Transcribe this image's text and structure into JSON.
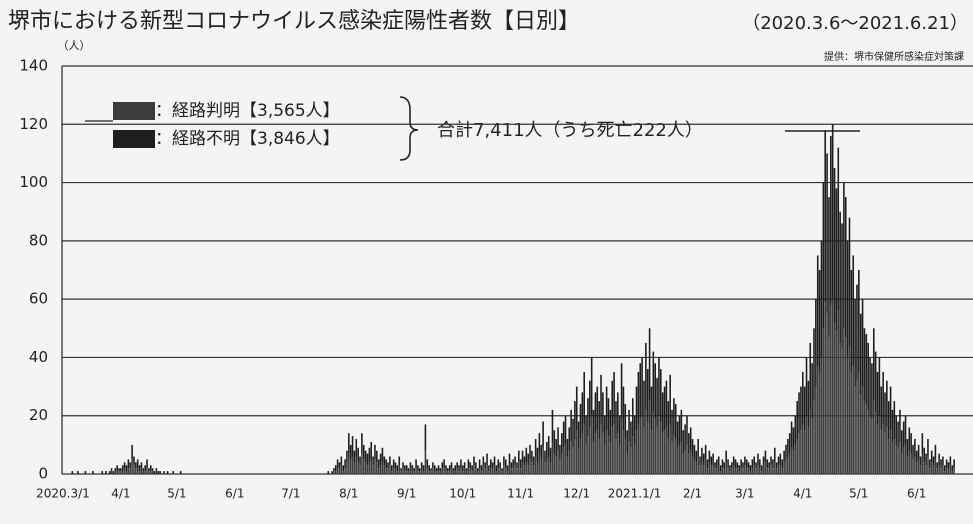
{
  "chart_data": {
    "type": "stacked_bar",
    "title": "堺市における新型コロナウイルス感染症陽性者数【日別】",
    "subtitle": "（2020.3.6～2021.6.21）",
    "source": "提供：堺市保健所感染症対策課",
    "y_label": "（人）",
    "annotation": "合計7,411人（うち死亡222人）",
    "ylim": [
      0,
      140
    ],
    "yticks": [
      0,
      20,
      40,
      60,
      80,
      100,
      120,
      140
    ],
    "grid": true,
    "categories": [
      "2020.3/1",
      null,
      null,
      null,
      null,
      null,
      null,
      null,
      null,
      null,
      null,
      null,
      null,
      null,
      null,
      null,
      null,
      null,
      null,
      null,
      null,
      null,
      null,
      null,
      null,
      null,
      null,
      null,
      null,
      null,
      null,
      "4/1",
      null,
      null,
      null,
      null,
      null,
      null,
      null,
      null,
      null,
      null,
      null,
      null,
      null,
      null,
      null,
      null,
      null,
      null,
      null,
      null,
      null,
      null,
      null,
      null,
      null,
      null,
      null,
      null,
      null,
      "5/1",
      null,
      null,
      null,
      null,
      null,
      null,
      null,
      null,
      null,
      null,
      null,
      null,
      null,
      null,
      null,
      null,
      null,
      null,
      null,
      null,
      null,
      null,
      null,
      null,
      null,
      null,
      null,
      null,
      null,
      null,
      "6/1",
      null,
      null,
      null,
      null,
      null,
      null,
      null,
      null,
      null,
      null,
      null,
      null,
      null,
      null,
      null,
      null,
      null,
      null,
      null,
      null,
      null,
      null,
      null,
      null,
      null,
      null,
      null,
      null,
      null,
      "7/1",
      null,
      null,
      null,
      null,
      null,
      null,
      null,
      null,
      null,
      null,
      null,
      null,
      null,
      null,
      null,
      null,
      null,
      null,
      null,
      null,
      null,
      null,
      null,
      null,
      null,
      null,
      null,
      null,
      null,
      null,
      "8/1",
      null,
      null,
      null,
      null,
      null,
      null,
      null,
      null,
      null,
      null,
      null,
      null,
      null,
      null,
      null,
      null,
      null,
      null,
      null,
      null,
      null,
      null,
      null,
      null,
      null,
      null,
      null,
      null,
      null,
      null,
      "9/1",
      null,
      null,
      null,
      null,
      null,
      null,
      null,
      null,
      null,
      null,
      null,
      null,
      null,
      null,
      null,
      null,
      null,
      null,
      null,
      null,
      null,
      null,
      null,
      null,
      null,
      null,
      null,
      null,
      null,
      "10/1",
      null,
      null,
      null,
      null,
      null,
      null,
      null,
      null,
      null,
      null,
      null,
      null,
      null,
      null,
      null,
      null,
      null,
      null,
      null,
      null,
      null,
      null,
      null,
      null,
      null,
      null,
      null,
      null,
      null,
      null,
      "11/1",
      null,
      null,
      null,
      null,
      null,
      null,
      null,
      null,
      null,
      null,
      null,
      null,
      null,
      null,
      null,
      null,
      null,
      null,
      null,
      null,
      null,
      null,
      null,
      null,
      null,
      null,
      null,
      null,
      null,
      "12/1",
      null,
      null,
      null,
      null,
      null,
      null,
      null,
      null,
      null,
      null,
      null,
      null,
      null,
      null,
      null,
      null,
      null,
      null,
      null,
      null,
      null,
      null,
      null,
      null,
      null,
      null,
      null,
      null,
      null,
      null,
      "2021.1/1",
      null,
      null,
      null,
      null,
      null,
      null,
      null,
      null,
      null,
      null,
      null,
      null,
      null,
      null,
      null,
      null,
      null,
      null,
      null,
      null,
      null,
      null,
      null,
      null,
      null,
      null,
      null,
      null,
      null,
      null,
      "2/1",
      null,
      null,
      null,
      null,
      null,
      null,
      null,
      null,
      null,
      null,
      null,
      null,
      null,
      null,
      null,
      null,
      null,
      null,
      null,
      null,
      null,
      null,
      null,
      null,
      null,
      null,
      null,
      "3/1",
      null,
      null,
      null,
      null,
      null,
      null,
      null,
      null,
      null,
      null,
      null,
      null,
      null,
      null,
      null,
      null,
      null,
      null,
      null,
      null,
      null,
      null,
      null,
      null,
      null,
      null,
      null,
      null,
      null,
      null,
      "4/1",
      null,
      null,
      null,
      null,
      null,
      null,
      null,
      null,
      null,
      null,
      null,
      null,
      null,
      null,
      null,
      null,
      null,
      null,
      null,
      null,
      null,
      null,
      null,
      null,
      null,
      null,
      null,
      null,
      null,
      "5/1",
      null,
      null,
      null,
      null,
      null,
      null,
      null,
      null,
      null,
      null,
      null,
      null,
      null,
      null,
      null,
      null,
      null,
      null,
      null,
      null,
      null,
      null,
      null,
      null,
      null,
      null,
      null,
      null,
      null,
      null,
      "6/1",
      null,
      null,
      null,
      null,
      null,
      null,
      null,
      null,
      null,
      null,
      null,
      null,
      null,
      null,
      null,
      null,
      null,
      null,
      null,
      null
    ],
    "series": [
      {
        "name": "：経路判明【3,565人】",
        "color": "#3c3c3c",
        "values": [
          0,
          0,
          0,
          0,
          0,
          0,
          0,
          0,
          0,
          0,
          0,
          0,
          0,
          0,
          0,
          0,
          0,
          0,
          0,
          0,
          0,
          0,
          0,
          0,
          0,
          0,
          1,
          0,
          1,
          1,
          1,
          1,
          1,
          2,
          1,
          2,
          2,
          5,
          3,
          2,
          2,
          1,
          2,
          1,
          1,
          2,
          1,
          1,
          1,
          0,
          1,
          0,
          0,
          0,
          0,
          0,
          0,
          0,
          0,
          0,
          0,
          0,
          0,
          0,
          0,
          0,
          0,
          0,
          0,
          0,
          0,
          0,
          0,
          0,
          0,
          0,
          0,
          0,
          0,
          0,
          0,
          0,
          0,
          0,
          0,
          0,
          0,
          0,
          0,
          0,
          0,
          0,
          0,
          0,
          0,
          0,
          0,
          0,
          0,
          0,
          0,
          0,
          0,
          0,
          0,
          0,
          0,
          0,
          0,
          0,
          0,
          0,
          0,
          0,
          0,
          0,
          0,
          0,
          0,
          0,
          0,
          0,
          0,
          0,
          0,
          0,
          0,
          0,
          0,
          0,
          0,
          0,
          0,
          0,
          0,
          0,
          0,
          0,
          0,
          0,
          0,
          0,
          0,
          0,
          0,
          1,
          1,
          2,
          2,
          3,
          1,
          2,
          4,
          7,
          5,
          6,
          4,
          6,
          4,
          3,
          7,
          5,
          4,
          3,
          4,
          5,
          3,
          5,
          4,
          2,
          3,
          4,
          3,
          2,
          2,
          3,
          1,
          2,
          2,
          1,
          3,
          1,
          2,
          1,
          1,
          1,
          2,
          1,
          1,
          2,
          1,
          1,
          2,
          1,
          8,
          2,
          1,
          1,
          2,
          1,
          1,
          1,
          1,
          2,
          2,
          1,
          1,
          1,
          2,
          1,
          1,
          2,
          1,
          2,
          1,
          2,
          1,
          2,
          2,
          1,
          3,
          2,
          1,
          2,
          1,
          3,
          2,
          3,
          1,
          2,
          2,
          3,
          1,
          2,
          2,
          1,
          3,
          2,
          1,
          3,
          2,
          2,
          3,
          2,
          4,
          2,
          4,
          3,
          4,
          3,
          5,
          4,
          3,
          6,
          4,
          7,
          5,
          9,
          4,
          5,
          6,
          4,
          11,
          7,
          6,
          8,
          5,
          7,
          9,
          10,
          6,
          8,
          11,
          9,
          12,
          15,
          9,
          12,
          14,
          17,
          10,
          13,
          16,
          20,
          11,
          14,
          15,
          12,
          17,
          14,
          10,
          15,
          13,
          11,
          16,
          17,
          12,
          14,
          10,
          19,
          15,
          12,
          7,
          11,
          9,
          13,
          10,
          15,
          17,
          19,
          20,
          16,
          22,
          18,
          25,
          15,
          21,
          19,
          16,
          20,
          18,
          14,
          15,
          16,
          12,
          17,
          11,
          13,
          12,
          9,
          10,
          11,
          7,
          8,
          10,
          7,
          8,
          6,
          5,
          4,
          6,
          3,
          4,
          3,
          5,
          2,
          4,
          3,
          3,
          2,
          2,
          3,
          1,
          2,
          2,
          4,
          2,
          1,
          2,
          3,
          2,
          2,
          1,
          2,
          2,
          3,
          2,
          2,
          1,
          2,
          3,
          2,
          3,
          2,
          1,
          3,
          4,
          2,
          2,
          3,
          2,
          4,
          2,
          3,
          3,
          2,
          4,
          5,
          6,
          7,
          9,
          8,
          10,
          12,
          14,
          15,
          17,
          15,
          20,
          16,
          22,
          19,
          25,
          30,
          37,
          35,
          40,
          50,
          59,
          55,
          47,
          58,
          60,
          52,
          49,
          56,
          45,
          43,
          50,
          47,
          40,
          44,
          35,
          37,
          30,
          32,
          35,
          27,
          30,
          25,
          24,
          22,
          20,
          19,
          25,
          21,
          17,
          20,
          15,
          17,
          14,
          16,
          12,
          15,
          11,
          12,
          10,
          9,
          11,
          7,
          9,
          10,
          6,
          8,
          7,
          5,
          6,
          4,
          5,
          3,
          7,
          4,
          3,
          6,
          2,
          4,
          3,
          5,
          2,
          3,
          2,
          3,
          1,
          2,
          2,
          3,
          1,
          2
        ]
      },
      {
        "name": "：経路不明【3,846人】",
        "color": "#1e1e1e",
        "values": [
          0,
          0,
          0,
          0,
          0,
          1,
          0,
          0,
          1,
          0,
          0,
          0,
          1,
          0,
          0,
          0,
          1,
          0,
          0,
          0,
          0,
          1,
          0,
          1,
          0,
          1,
          1,
          1,
          1,
          2,
          1,
          1,
          2,
          2,
          2,
          3,
          2,
          5,
          3,
          2,
          3,
          2,
          2,
          1,
          2,
          3,
          1,
          2,
          1,
          1,
          1,
          1,
          1,
          0,
          1,
          0,
          1,
          0,
          0,
          1,
          0,
          0,
          0,
          1,
          0,
          0,
          0,
          0,
          0,
          0,
          0,
          0,
          0,
          0,
          0,
          0,
          0,
          0,
          0,
          0,
          0,
          0,
          0,
          0,
          0,
          0,
          0,
          0,
          0,
          0,
          0,
          0,
          0,
          0,
          0,
          0,
          0,
          0,
          0,
          0,
          0,
          0,
          0,
          0,
          0,
          0,
          0,
          0,
          0,
          0,
          0,
          0,
          0,
          0,
          0,
          0,
          0,
          0,
          0,
          0,
          0,
          0,
          0,
          0,
          0,
          0,
          0,
          0,
          0,
          0,
          0,
          0,
          0,
          0,
          0,
          0,
          0,
          0,
          0,
          0,
          0,
          0,
          1,
          0,
          1,
          1,
          2,
          3,
          2,
          3,
          2,
          3,
          4,
          7,
          5,
          7,
          4,
          6,
          5,
          3,
          7,
          5,
          4,
          4,
          5,
          6,
          3,
          5,
          4,
          3,
          4,
          5,
          3,
          3,
          2,
          3,
          2,
          3,
          2,
          2,
          3,
          1,
          2,
          2,
          2,
          1,
          2,
          2,
          1,
          3,
          2,
          1,
          2,
          2,
          9,
          3,
          2,
          1,
          2,
          2,
          1,
          2,
          1,
          2,
          3,
          2,
          1,
          2,
          2,
          1,
          2,
          2,
          2,
          3,
          2,
          2,
          1,
          3,
          2,
          2,
          3,
          2,
          1,
          3,
          2,
          3,
          2,
          4,
          2,
          3,
          2,
          3,
          2,
          3,
          2,
          1,
          3,
          3,
          2,
          4,
          2,
          3,
          3,
          2,
          4,
          3,
          4,
          3,
          5,
          4,
          5,
          4,
          3,
          6,
          5,
          7,
          5,
          9,
          4,
          6,
          7,
          5,
          11,
          8,
          6,
          8,
          5,
          7,
          9,
          10,
          6,
          8,
          11,
          10,
          13,
          15,
          9,
          12,
          14,
          18,
          10,
          13,
          16,
          20,
          11,
          14,
          15,
          13,
          17,
          14,
          10,
          15,
          13,
          11,
          16,
          18,
          13,
          14,
          10,
          19,
          15,
          12,
          8,
          11,
          9,
          13,
          10,
          15,
          18,
          19,
          20,
          16,
          23,
          18,
          25,
          15,
          21,
          19,
          17,
          20,
          18,
          14,
          15,
          16,
          13,
          17,
          11,
          13,
          12,
          9,
          10,
          11,
          8,
          9,
          10,
          7,
          8,
          6,
          5,
          4,
          6,
          3,
          5,
          4,
          5,
          3,
          4,
          3,
          4,
          2,
          3,
          3,
          2,
          3,
          2,
          4,
          3,
          2,
          2,
          3,
          3,
          2,
          2,
          3,
          2,
          3,
          3,
          2,
          2,
          3,
          3,
          2,
          4,
          3,
          2,
          3,
          4,
          3,
          2,
          3,
          3,
          5,
          2,
          3,
          4,
          3,
          4,
          5,
          6,
          7,
          9,
          8,
          10,
          13,
          14,
          15,
          18,
          15,
          20,
          16,
          23,
          19,
          25,
          30,
          38,
          35,
          40,
          50,
          59,
          55,
          48,
          58,
          60,
          53,
          49,
          56,
          45,
          43,
          50,
          48,
          40,
          44,
          35,
          38,
          30,
          33,
          35,
          28,
          30,
          25,
          24,
          23,
          20,
          19,
          25,
          21,
          18,
          20,
          15,
          18,
          14,
          16,
          13,
          15,
          11,
          13,
          10,
          9,
          11,
          8,
          9,
          10,
          6,
          8,
          7,
          5,
          6,
          4,
          5,
          3,
          7,
          5,
          4,
          6,
          3,
          4,
          3,
          5,
          2,
          4,
          3,
          3,
          2,
          3,
          2,
          3,
          2,
          3
        ]
      }
    ]
  }
}
